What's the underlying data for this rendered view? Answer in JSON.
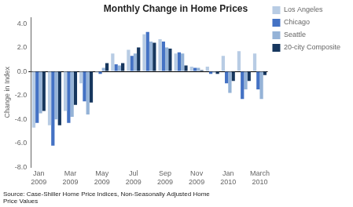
{
  "chart_data": {
    "type": "bar",
    "title": "Monthly Change in Home Prices",
    "ylabel": "Change in Index",
    "annotations": [
      "Source: Case-Shiller Home Price Indices, Non-Seasonally Adjusted Home\nPrice Values"
    ],
    "categories": [
      "Jan\n2009",
      null,
      "Mar\n2009",
      null,
      "May\n2009",
      null,
      "Jul\n2009",
      null,
      "Sep\n2009",
      null,
      "Nov\n2009",
      null,
      "Jan\n2010",
      null,
      "March\n2010"
    ],
    "series": [
      {
        "name": "Los Angeles",
        "color": "#b8cce4",
        "values": [
          -4.7,
          -4.5,
          -3.3,
          -1.0,
          -0.1,
          1.5,
          1.8,
          3.1,
          2.7,
          1.5,
          0.4,
          0.4,
          1.3,
          1.7,
          1.5
        ]
      },
      {
        "name": "Chicago",
        "color": "#4472c4",
        "values": [
          -4.3,
          -6.2,
          -4.3,
          -2.5,
          -0.2,
          0.6,
          1.3,
          3.3,
          2.5,
          1.6,
          0.3,
          -0.2,
          -1.0,
          -2.3,
          -1.5
        ]
      },
      {
        "name": "Seattle",
        "color": "#95b3d7",
        "values": [
          -3.5,
          -4.0,
          -3.8,
          -3.6,
          0.3,
          0.5,
          1.5,
          2.5,
          2.0,
          1.5,
          0.3,
          -0.1,
          -1.8,
          -1.5,
          -2.3
        ]
      },
      {
        "name": "20-city Composite",
        "color": "#17375e",
        "values": [
          -3.3,
          -4.5,
          -2.8,
          -2.6,
          0.7,
          0.7,
          2.0,
          2.4,
          1.9,
          0.5,
          0.1,
          -0.2,
          -0.8,
          -0.8,
          -0.3
        ]
      }
    ],
    "ylim": [
      -8.0,
      4.5
    ],
    "yticks": [
      {
        "value": -8.0,
        "label": "-8.0"
      },
      {
        "value": -6.0,
        "label": "-6.0"
      },
      {
        "value": -4.0,
        "label": "-4.0"
      },
      {
        "value": -2.0,
        "label": "-2.0"
      },
      {
        "value": 0.0,
        "label": "0.0"
      },
      {
        "value": 2.0,
        "label": "2.0"
      },
      {
        "value": 4.0,
        "label": "4.0"
      }
    ],
    "grid": false,
    "legend": "right"
  }
}
